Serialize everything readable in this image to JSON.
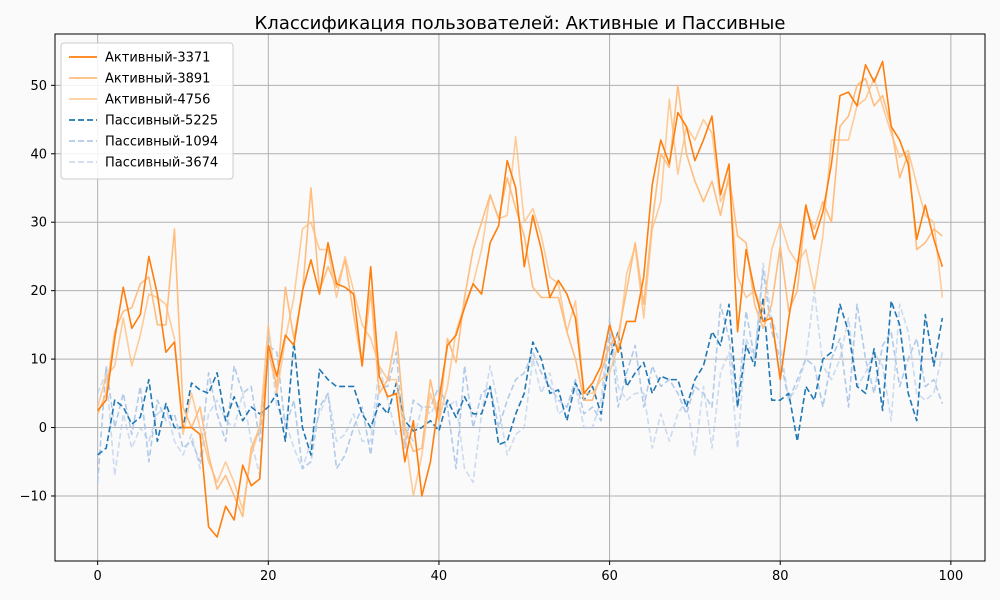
{
  "chart_data": {
    "type": "line",
    "title": "Классификация пользователей: Активные и Пассивные",
    "xlabel": "",
    "ylabel": "",
    "xlim": [
      -5,
      104
    ],
    "ylim": [
      -19.5,
      57.5
    ],
    "x_ticks": [
      0,
      20,
      40,
      60,
      80,
      100
    ],
    "y_ticks": [
      -10,
      0,
      10,
      20,
      30,
      40,
      50
    ],
    "grid": true,
    "legend_position": "top-left",
    "x": [
      0,
      1,
      2,
      3,
      4,
      5,
      6,
      7,
      8,
      9,
      10,
      11,
      12,
      13,
      14,
      15,
      16,
      17,
      18,
      19,
      20,
      21,
      22,
      23,
      24,
      25,
      26,
      27,
      28,
      29,
      30,
      31,
      32,
      33,
      34,
      35,
      36,
      37,
      38,
      39,
      40,
      41,
      42,
      43,
      44,
      45,
      46,
      47,
      48,
      49,
      50,
      51,
      52,
      53,
      54,
      55,
      56,
      57,
      58,
      59,
      60,
      61,
      62,
      63,
      64,
      65,
      66,
      67,
      68,
      69,
      70,
      71,
      72,
      73,
      74,
      75,
      76,
      77,
      78,
      79,
      80,
      81,
      82,
      83,
      84,
      85,
      86,
      87,
      88,
      89,
      90,
      91,
      92,
      93,
      94,
      95,
      96,
      97,
      98,
      99
    ],
    "series": [
      {
        "name": "Активный-3371",
        "color": "#ff7f0e",
        "dash": "solid",
        "opacity": 1.0,
        "values": [
          2.5,
          4,
          13,
          20.5,
          14.5,
          16.5,
          25,
          19.5,
          11,
          12.5,
          0,
          0,
          -1,
          -14.5,
          -16,
          -11.5,
          -13.5,
          -5.5,
          -8.5,
          -7.5,
          12,
          7.5,
          13.5,
          12,
          20,
          24.5,
          19.5,
          27,
          21,
          20.5,
          19.5,
          9,
          23.5,
          7.5,
          4.5,
          5,
          -5,
          1,
          -10,
          -5,
          4,
          12,
          13.5,
          17.5,
          21,
          19.5,
          27,
          29.5,
          39,
          35,
          23.5,
          31,
          26,
          19,
          21.5,
          19.5,
          16,
          5,
          6.5,
          9,
          15,
          11,
          15.5,
          15.5,
          22,
          35.5,
          42,
          38.5,
          46,
          44,
          39,
          42,
          45.5,
          34,
          38.5,
          14,
          26,
          20,
          15.5,
          16,
          7,
          16,
          23.5,
          32.5,
          27.5,
          31.5,
          38.5,
          48.5,
          49,
          47,
          53,
          50.5,
          53.5,
          44,
          42,
          38.5,
          27.5,
          32.5,
          27.5,
          23.5
        ]
      },
      {
        "name": "Активный-3891",
        "color": "#ffbb78",
        "dash": "solid",
        "opacity": 0.95,
        "values": [
          2,
          5,
          14,
          17,
          17.5,
          21,
          22,
          15,
          15,
          29,
          3,
          0,
          3,
          -4,
          -9,
          -7,
          -10,
          -13,
          -3,
          0,
          11,
          6,
          20.5,
          13,
          19.5,
          35,
          20,
          23.5,
          20.5,
          24.5,
          16.5,
          9,
          20,
          5,
          7,
          14,
          0,
          -3.5,
          -3,
          7,
          1,
          13,
          9.5,
          19,
          26,
          30,
          34,
          30.5,
          36.5,
          32,
          28,
          20.5,
          19,
          19,
          19,
          14,
          10,
          4,
          4,
          8,
          12,
          13.5,
          20,
          27,
          18,
          30,
          40,
          38,
          50,
          40,
          36,
          33,
          36,
          31,
          37,
          28,
          27,
          18,
          14.5,
          18,
          26.5,
          17,
          20,
          32,
          29,
          33,
          30,
          44,
          45.5,
          50,
          51,
          47,
          48.5,
          44,
          36.5,
          40,
          26,
          27,
          29,
          28
        ]
      },
      {
        "name": "Активный-4756",
        "color": "#ffbb78",
        "dash": "solid",
        "opacity": 0.75,
        "values": [
          3,
          7.5,
          9,
          16,
          9,
          13.5,
          19.5,
          19,
          18,
          13,
          -1,
          5,
          0,
          -5,
          -8,
          -5,
          -8,
          -12,
          -4,
          0,
          15,
          5,
          13,
          19,
          29,
          30,
          26,
          26,
          19,
          25,
          20,
          15,
          13,
          9,
          7,
          7,
          -1,
          -10,
          -4,
          5,
          1,
          6,
          14,
          18,
          21,
          26,
          34,
          30.5,
          31,
          42.5,
          30,
          32,
          28,
          22,
          21,
          14,
          18.5,
          5,
          5,
          7,
          8,
          12,
          22.5,
          26.5,
          16,
          29,
          33,
          48,
          37,
          44,
          42,
          45,
          43,
          33,
          36,
          22,
          19,
          20,
          17,
          26,
          30,
          26,
          24,
          26,
          20,
          28,
          42,
          42,
          42,
          47,
          48,
          51,
          47,
          43,
          39.5,
          40.5,
          35.5,
          31,
          30,
          19
        ]
      },
      {
        "name": "Пассивный-5225",
        "color": "#1f77b4",
        "dash": "dashed",
        "opacity": 1.0,
        "values": [
          -4,
          -3,
          4,
          3,
          0.5,
          1.5,
          7,
          -2,
          3.5,
          0,
          0,
          6.5,
          5.5,
          5,
          8,
          1,
          4.5,
          1,
          3,
          2,
          3,
          5,
          -2,
          12.5,
          0,
          -4,
          8.5,
          7,
          6,
          6,
          6,
          2,
          0,
          3.5,
          2,
          6.5,
          1,
          -0.5,
          0,
          1,
          -0.5,
          4,
          1.5,
          4.5,
          2,
          2,
          6,
          -2.5,
          -2,
          2,
          5,
          12.5,
          10,
          5,
          5.5,
          1,
          6.5,
          4,
          6,
          2,
          10,
          14,
          6,
          8,
          9.5,
          5,
          7.5,
          7,
          7,
          3,
          7,
          9,
          14,
          12,
          18,
          3,
          12,
          9,
          19,
          4,
          4,
          5,
          -2,
          6,
          4,
          10,
          11,
          18,
          14,
          6,
          5,
          11.5,
          2.5,
          18.5,
          15,
          5,
          1,
          16.5,
          9,
          16
        ]
      },
      {
        "name": "Пассивный-1094",
        "color": "#aec7e8",
        "dash": "dashed",
        "opacity": 0.95,
        "values": [
          -8,
          9,
          0,
          5,
          -1,
          6,
          -5,
          4,
          1,
          2,
          -3,
          -2,
          -5,
          8,
          2,
          -2,
          9,
          5,
          6,
          -2,
          12,
          11,
          0,
          4,
          -6,
          -5,
          3,
          5,
          -6,
          -4,
          0,
          3,
          -4,
          6,
          6,
          11,
          -3,
          4,
          3,
          3,
          6,
          3,
          -6,
          9,
          0,
          5,
          6,
          0,
          4,
          7,
          8,
          11,
          8,
          6,
          4,
          3,
          7,
          2,
          3,
          1,
          15,
          3,
          8,
          12,
          3,
          9,
          6,
          7,
          5,
          2,
          6,
          5,
          3,
          18,
          13,
          3,
          17,
          10,
          23,
          14,
          10,
          4,
          7,
          10,
          9,
          3,
          10,
          13,
          3,
          18,
          10,
          5,
          12,
          14,
          6,
          10,
          13,
          6,
          7,
          3.5
        ]
      },
      {
        "name": "Пассивный-3674",
        "color": "#aec7e8",
        "dash": "dashed",
        "opacity": 0.6,
        "values": [
          5,
          8,
          -7,
          2,
          -3,
          0,
          -2,
          2,
          3,
          -2,
          -4,
          -1,
          -6,
          2,
          4,
          1,
          0,
          5,
          -2,
          -7,
          14,
          3,
          1,
          -3,
          -6,
          -2,
          2,
          5,
          -2,
          -1,
          2,
          -2,
          -2,
          9,
          4,
          -1,
          0,
          -2,
          3,
          2,
          4,
          3,
          4,
          -6,
          -8,
          2,
          9,
          3,
          -4,
          -1,
          0,
          10,
          5,
          8,
          2,
          3,
          6,
          0,
          0,
          4,
          16,
          6,
          4,
          5,
          5,
          -3,
          2,
          -2,
          2,
          4,
          -4,
          6,
          -3,
          8,
          11,
          -3,
          13,
          10,
          24,
          16,
          12,
          4,
          6,
          10,
          20,
          9,
          7,
          10,
          16,
          6,
          8,
          11,
          9,
          1,
          18,
          14,
          5,
          4,
          5,
          11
        ]
      }
    ]
  }
}
